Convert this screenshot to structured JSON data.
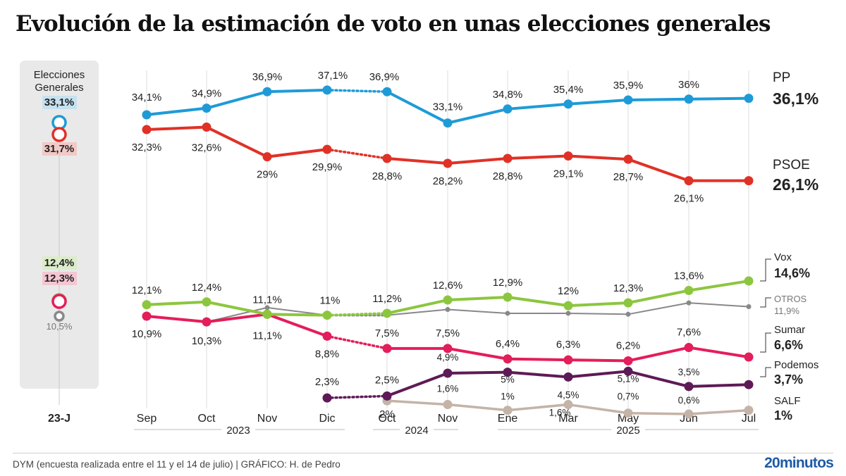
{
  "title": "Evolución de la estimación de voto en unas elecciones generales",
  "footer": {
    "source": "DYM (encuesta realizada entre el 11 y el 14 de julio)  |  GRÁFICO: H. de Pedro",
    "brand_num": "20",
    "brand_text": "minutos"
  },
  "chart_data": {
    "type": "line",
    "ylim": [
      0,
      40
    ],
    "categories": [
      "Sep",
      "Oct",
      "Nov",
      "Dic",
      "Oct",
      "Nov",
      "Ene",
      "Mar",
      "May",
      "Jun",
      "Jul"
    ],
    "years": [
      "2023",
      "2024",
      "2025"
    ],
    "reference": {
      "title_line1": "Elecciones",
      "title_line2": "Generales",
      "label": "23-J",
      "values": [
        {
          "name": "PP",
          "value": "33,1%",
          "color": "#1e9bd7"
        },
        {
          "name": "PSOE",
          "value": "31,7%",
          "color": "#e03127"
        },
        {
          "name": "Vox",
          "value": "12,4%",
          "color": "#8cc63f"
        },
        {
          "name": "Sumar",
          "value": "12,3%",
          "color": "#e41d5b"
        },
        {
          "name": "OTROS",
          "value": "10,5%",
          "color": "#888888"
        }
      ]
    },
    "series": [
      {
        "name": "PP",
        "final_label": "36,1%",
        "color": "#1e9bd7",
        "values": [
          34.1,
          34.9,
          36.9,
          37.1,
          36.9,
          33.1,
          34.8,
          35.4,
          35.9,
          36.0,
          36.1
        ],
        "labels": [
          "34,1%",
          "34,9%",
          "36,9%",
          "37,1%",
          "36,9%",
          "33,1%",
          "34,8%",
          "35,4%",
          "35,9%",
          "36%",
          ""
        ]
      },
      {
        "name": "PSOE",
        "final_label": "26,1%",
        "color": "#e03127",
        "values": [
          32.3,
          32.6,
          29.0,
          29.9,
          28.8,
          28.2,
          28.8,
          29.1,
          28.7,
          26.1,
          26.1
        ],
        "labels": [
          "32,3%",
          "32,6%",
          "29%",
          "29,9%",
          "28,8%",
          "28,2%",
          "28,8%",
          "29,1%",
          "28,7%",
          "26,1%",
          ""
        ]
      },
      {
        "name": "Vox",
        "final_label": "14,6%",
        "color": "#8cc63f",
        "values": [
          12.1,
          12.4,
          11.1,
          11.0,
          11.2,
          12.6,
          12.9,
          12.0,
          12.3,
          13.6,
          14.6
        ],
        "labels": [
          "12,1%",
          "12,4%",
          "11,1%",
          "11%",
          "11,2%",
          "12,6%",
          "12,9%",
          "12%",
          "12,3%",
          "13,6%",
          ""
        ]
      },
      {
        "name": "OTROS",
        "final_label": "11,9%",
        "color": "#888888",
        "values": [
          10.9,
          10.3,
          11.8,
          11.0,
          11.0,
          11.6,
          11.2,
          11.2,
          11.1,
          12.3,
          11.9
        ],
        "labels": []
      },
      {
        "name": "Sumar",
        "final_label": "6,6%",
        "color": "#e41d5b",
        "values": [
          10.9,
          10.3,
          11.1,
          8.8,
          7.5,
          7.5,
          6.4,
          6.3,
          6.2,
          7.6,
          6.6
        ],
        "labels": [
          "10,9%",
          "10,3%",
          "11,1%",
          "8,8%",
          "7,5%",
          "7,5%",
          "6,4%",
          "6,3%",
          "6,2%",
          "7,6%",
          ""
        ]
      },
      {
        "name": "Podemos",
        "final_label": "3,7%",
        "color": "#5e1a56",
        "values": [
          null,
          null,
          null,
          2.3,
          2.5,
          4.9,
          5.0,
          4.5,
          5.1,
          3.5,
          3.7
        ],
        "labels": [
          "",
          "",
          "",
          "2,3%",
          "2,5%",
          "4,9%",
          "5%",
          "4,5%",
          "5,1%",
          "3,5%",
          ""
        ]
      },
      {
        "name": "SALF",
        "final_label": "1%",
        "color": "#c4b3a7",
        "values": [
          null,
          null,
          null,
          null,
          2.0,
          1.6,
          1.0,
          1.6,
          0.7,
          0.6,
          1.0
        ],
        "labels": [
          "",
          "",
          "",
          "",
          "2%",
          "1,6%",
          "1%",
          "1,6%",
          "0,7%",
          "0,6%",
          ""
        ]
      }
    ]
  }
}
